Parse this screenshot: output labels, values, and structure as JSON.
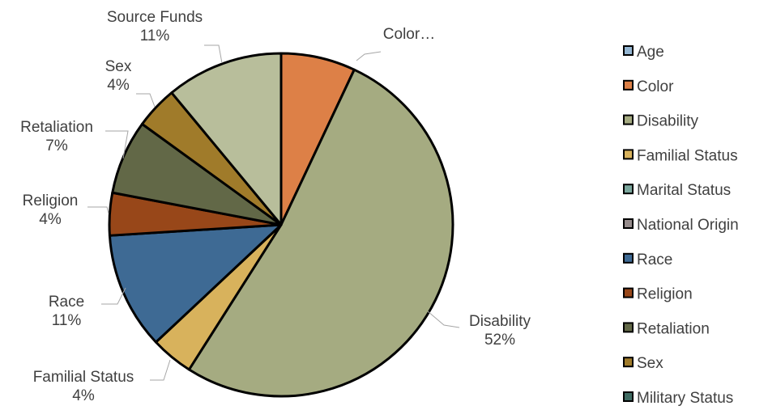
{
  "chart_data": {
    "type": "pie",
    "title": "",
    "slices": [
      {
        "label": "Color",
        "value": 7,
        "label_text": "Color…",
        "pct_text": "",
        "color": "#DD8047"
      },
      {
        "label": "Disability",
        "value": 52,
        "label_text": "Disability",
        "pct_text": "52%",
        "color": "#A5AB81"
      },
      {
        "label": "Familial Status",
        "value": 4,
        "label_text": "Familial Status",
        "pct_text": "4%",
        "color": "#D8B25C"
      },
      {
        "label": "Race",
        "value": 11,
        "label_text": "Race",
        "pct_text": "11%",
        "color": "#3E6A94"
      },
      {
        "label": "Religion",
        "value": 4,
        "label_text": "Religion",
        "pct_text": "4%",
        "color": "#984719"
      },
      {
        "label": "Retaliation",
        "value": 7,
        "label_text": "Retaliation",
        "pct_text": "7%",
        "color": "#626847"
      },
      {
        "label": "Sex",
        "value": 4,
        "label_text": "Sex",
        "pct_text": "4%",
        "color": "#A07B2A"
      },
      {
        "label": "Source Funds",
        "value": 11,
        "label_text": "Source Funds",
        "pct_text": "11%",
        "color": "#B8BE9B"
      }
    ],
    "legend": {
      "position": "right",
      "items": [
        {
          "label": "Age",
          "color": "#94B6D2"
        },
        {
          "label": "Color",
          "color": "#DD8047"
        },
        {
          "label": "Disability",
          "color": "#A5AB81"
        },
        {
          "label": "Familial Status",
          "color": "#D8B25C"
        },
        {
          "label": "Marital Status",
          "color": "#7BA79D"
        },
        {
          "label": "National Origin",
          "color": "#968C8C"
        },
        {
          "label": "Race",
          "color": "#3E6A94"
        },
        {
          "label": "Religion",
          "color": "#984719"
        },
        {
          "label": "Retaliation",
          "color": "#626847"
        },
        {
          "label": "Sex",
          "color": "#A07B2A"
        },
        {
          "label": "Military Status",
          "color": "#3F6B62"
        }
      ]
    }
  }
}
